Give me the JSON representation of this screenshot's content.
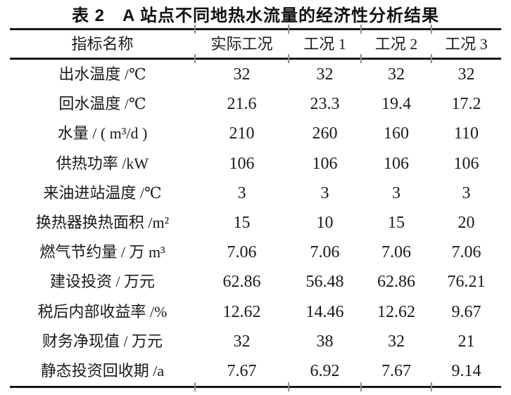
{
  "title": "表 2　A 站点不同地热水流量的经济性分析结果",
  "table": {
    "columns": [
      "指标名称",
      "实际工况",
      "工况 1",
      "工况 2",
      "工况 3"
    ],
    "rows": [
      {
        "label": "出水温度 /℃",
        "values": [
          "32",
          "32",
          "32",
          "32"
        ]
      },
      {
        "label": "回水温度 /℃",
        "values": [
          "21.6",
          "23.3",
          "19.4",
          "17.2"
        ]
      },
      {
        "label": "水量 / ( m³/d )",
        "values": [
          "210",
          "260",
          "160",
          "110"
        ]
      },
      {
        "label": "供热功率 /kW",
        "values": [
          "106",
          "106",
          "106",
          "106"
        ]
      },
      {
        "label": "来油进站温度 /℃",
        "values": [
          "3",
          "3",
          "3",
          "3"
        ]
      },
      {
        "label": "换热器换热面积 /m²",
        "values": [
          "15",
          "10",
          "15",
          "20"
        ]
      },
      {
        "label": "燃气节约量 / 万 m³",
        "values": [
          "7.06",
          "7.06",
          "7.06",
          "7.06"
        ]
      },
      {
        "label": "建设投资 / 万元",
        "values": [
          "62.86",
          "56.48",
          "62.86",
          "76.21"
        ]
      },
      {
        "label": "税后内部收益率 /%",
        "values": [
          "12.62",
          "14.46",
          "12.62",
          "9.67"
        ]
      },
      {
        "label": "财务净现值 / 万元",
        "values": [
          "32",
          "38",
          "32",
          "21"
        ]
      },
      {
        "label": "静态投资回收期 /a",
        "values": [
          "7.67",
          "6.92",
          "7.67",
          "9.14"
        ]
      }
    ]
  },
  "colors": {
    "text": "#1a1a1a",
    "rule": "#161616",
    "tick": "#8f8f8f",
    "background": "#ffffff"
  }
}
